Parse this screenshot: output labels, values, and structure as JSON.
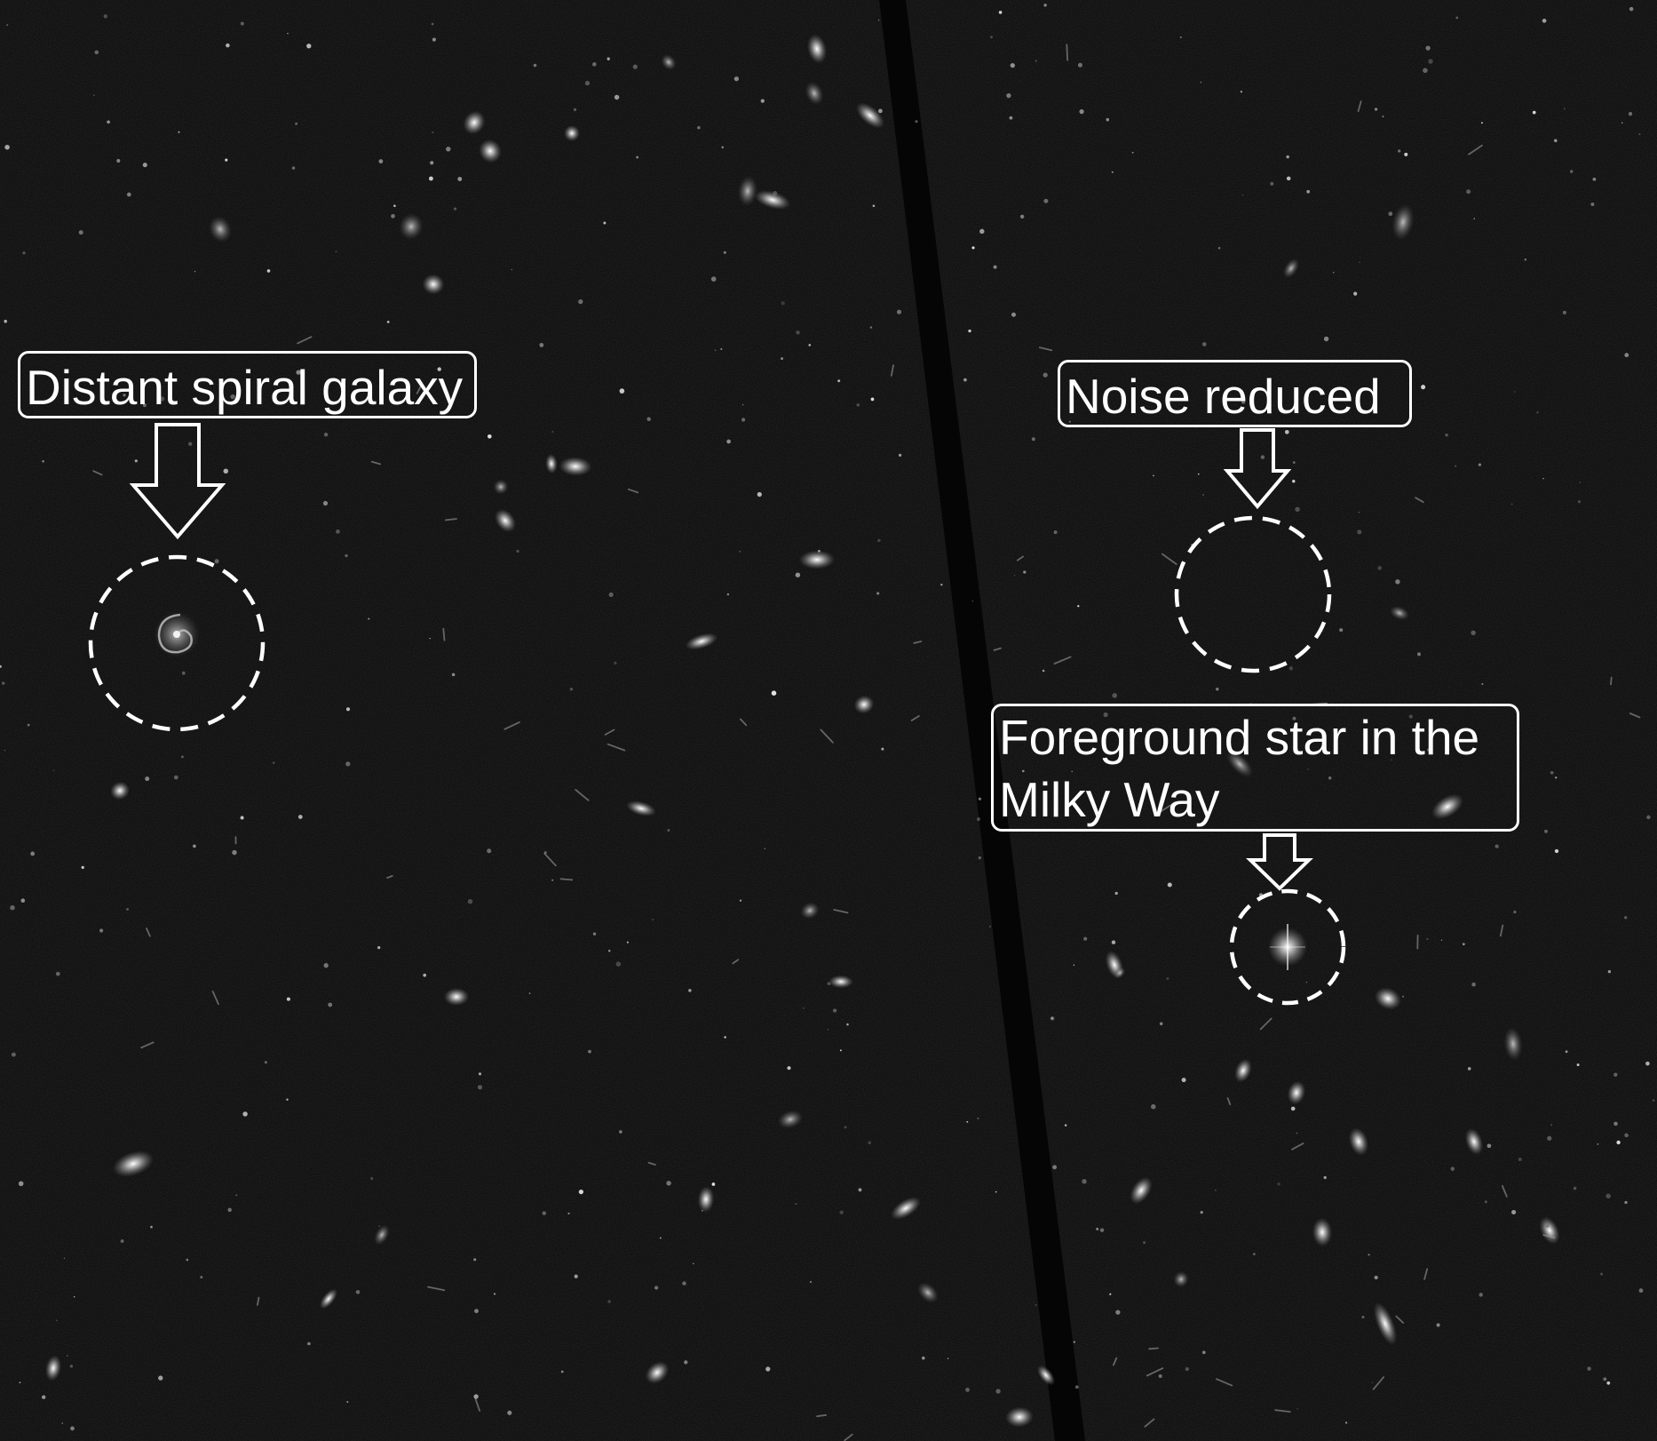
{
  "labels": {
    "spiral": "Distant spiral galaxy",
    "noise": "Noise reduced",
    "star": "Foreground star in the Milky Way"
  },
  "colors": {
    "background": "#0a0a0a",
    "annotation": "#ffffff",
    "seam": "#050505"
  }
}
